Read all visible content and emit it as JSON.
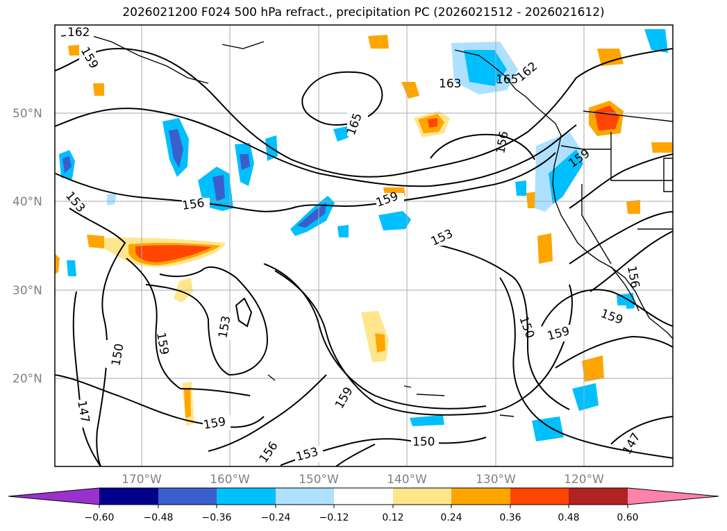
{
  "title": "2026021200 F024 500 hPa refract., precipitation PC (2026021512 - 2026021612)",
  "map": {
    "lon_labels": [
      "170°W",
      "160°W",
      "150°W",
      "140°W",
      "130°W",
      "120°W"
    ],
    "lat_labels": [
      "50°N",
      "40°N",
      "30°N",
      "20°N"
    ],
    "contour_labels": [
      "162",
      "159",
      "165",
      "163",
      "165",
      "162",
      "156",
      "159",
      "153",
      "156",
      "159",
      "153",
      "159",
      "150",
      "153",
      "150",
      "159",
      "147",
      "159",
      "156",
      "153",
      "159",
      "150",
      "159",
      "147",
      "156"
    ]
  },
  "colorbar": {
    "colors": [
      "#9932CC",
      "#00008B",
      "#3A5FCD",
      "#00BFFF",
      "#ADE1FF",
      "#FFFFFF",
      "#FFE68C",
      "#FFA500",
      "#FF4500",
      "#B22222",
      "#FF82AB"
    ],
    "ticks": [
      "−0.60",
      "−0.48",
      "−0.36",
      "−0.24",
      "−0.12",
      "0.12",
      "0.24",
      "0.36",
      "0.48",
      "0.60"
    ]
  },
  "style": {
    "grid_color": "#aaaaaa",
    "contour_color": "#000000"
  }
}
